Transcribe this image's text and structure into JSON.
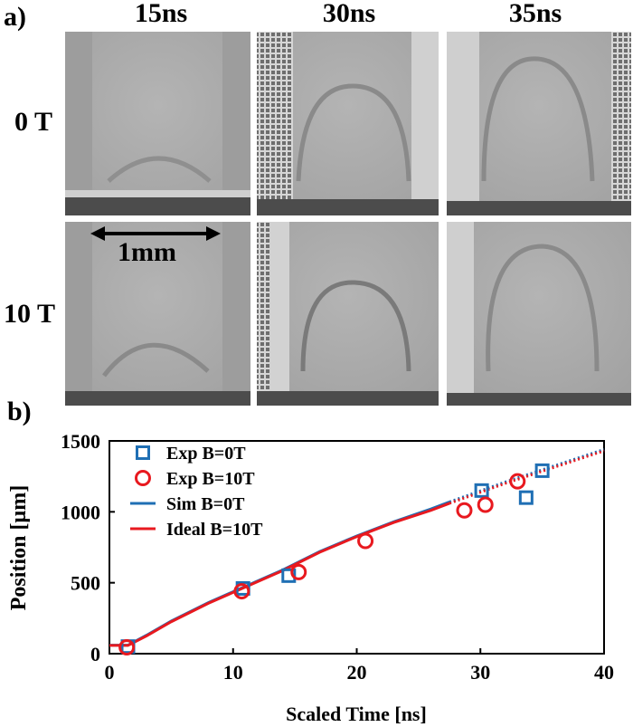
{
  "panel_a": {
    "label": "a)",
    "times": [
      "15ns",
      "30ns",
      "35ns"
    ],
    "fields": [
      "0 T",
      "10 T"
    ],
    "scale_bar": "1mm"
  },
  "panel_b": {
    "label": "b)"
  },
  "chart_data": {
    "type": "scatter",
    "title": "",
    "xlabel": "Scaled Time [ns]",
    "ylabel": "Position [µm]",
    "xlim": [
      0,
      40
    ],
    "ylim": [
      0,
      1500
    ],
    "xticks": [
      0,
      10,
      20,
      30,
      40
    ],
    "yticks": [
      0,
      500,
      1000,
      1500
    ],
    "legend_position": "top-left",
    "colors": {
      "blue": "#1f6fb4",
      "red": "#e8191f"
    },
    "series": [
      {
        "name": "Exp B=0T",
        "kind": "scatter",
        "marker": "square",
        "color": "#1f6fb4",
        "x": [
          1.5,
          10.8,
          14.5,
          30.1,
          33.7,
          35.0
        ],
        "y": [
          50,
          460,
          550,
          1150,
          1100,
          1290
        ]
      },
      {
        "name": "Exp B=10T",
        "kind": "scatter",
        "marker": "circle",
        "color": "#e8191f",
        "x": [
          1.4,
          10.7,
          15.3,
          20.7,
          28.7,
          30.4,
          33.0
        ],
        "y": [
          45,
          440,
          575,
          795,
          1010,
          1050,
          1215
        ]
      },
      {
        "name": "Sim B=0T",
        "kind": "line",
        "color": "#1f6fb4",
        "x": [
          0,
          1.5,
          3,
          5,
          8,
          11,
          14,
          17,
          20,
          23,
          26,
          27.5
        ],
        "y": [
          60,
          60,
          130,
          230,
          360,
          475,
          590,
          720,
          830,
          930,
          1020,
          1070
        ],
        "dotted_extension": {
          "x": [
            27.5,
            32,
            36,
            40
          ],
          "y": [
            1070,
            1210,
            1325,
            1440
          ]
        }
      },
      {
        "name": "Ideal B=10T",
        "kind": "line",
        "color": "#e8191f",
        "x": [
          0,
          1.5,
          3,
          5,
          8,
          11,
          14,
          17,
          20,
          23,
          26,
          27.5
        ],
        "y": [
          58,
          58,
          125,
          225,
          355,
          470,
          585,
          715,
          825,
          925,
          1010,
          1060
        ],
        "dotted_extension": {
          "x": [
            27.5,
            32,
            36,
            40
          ],
          "y": [
            1060,
            1200,
            1315,
            1430
          ]
        }
      }
    ]
  }
}
